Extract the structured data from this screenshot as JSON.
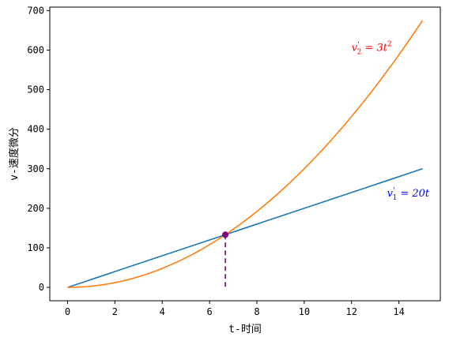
{
  "chart_data": {
    "type": "line",
    "xlabel": "t-时间",
    "ylabel": "v-速度微分",
    "xlim": [
      -0.75,
      15.75
    ],
    "ylim": [
      -33.75,
      708.75
    ],
    "x_ticks": [
      "0",
      "2",
      "4",
      "6",
      "8",
      "10",
      "12",
      "14"
    ],
    "y_ticks": [
      "0",
      "100",
      "200",
      "300",
      "400",
      "500",
      "600",
      "700"
    ],
    "grid": false,
    "series": [
      {
        "expression": "v'1 = 20t",
        "color": "#1f77b4",
        "x": [
          0,
          15
        ],
        "formula": "linear",
        "coef": 20
      },
      {
        "expression": "v'2 = 3t^2",
        "color": "#ff7f0e",
        "x": [
          0,
          15
        ],
        "formula": "quadratic",
        "coef": 3
      }
    ],
    "intersection": {
      "x": 6.667,
      "y": 133.33,
      "color": "#800080"
    },
    "annotations": [
      {
        "label": "v'1 = 20t",
        "base": "v",
        "prime": "'",
        "sub": "1",
        "rhs": " = 20t",
        "color": "#0000ff",
        "x": 13.5,
        "y": 230
      },
      {
        "label": "v'2 = 3t^2",
        "base": "v",
        "prime": "'",
        "sub": "2",
        "rhs": " = 3t",
        "sup": "2",
        "color": "#ff0000",
        "x": 12,
        "y": 598
      }
    ]
  }
}
